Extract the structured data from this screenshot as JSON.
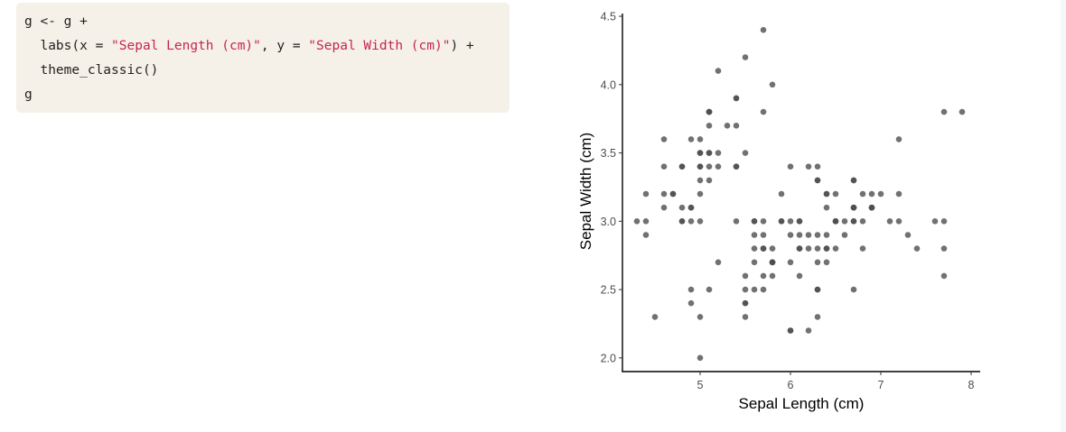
{
  "code": {
    "lines": [
      [
        {
          "t": "g <- g +",
          "k": "plain"
        }
      ],
      [
        {
          "t": "  labs(x = ",
          "k": "plain"
        },
        {
          "t": "\"Sepal Length (cm)\"",
          "k": "str"
        },
        {
          "t": ", y = ",
          "k": "plain"
        },
        {
          "t": "\"Sepal Width (cm)\"",
          "k": "str"
        },
        {
          "t": ") +",
          "k": "plain"
        }
      ],
      [
        {
          "t": "  theme_classic()",
          "k": "plain"
        }
      ],
      [
        {
          "t": "g",
          "k": "plain"
        }
      ]
    ]
  },
  "colors": {
    "point": "#4d4d4d",
    "string": "#c7254e",
    "code_bg": "#f5f1e9"
  },
  "chart_data": {
    "type": "scatter",
    "xlabel": "Sepal Length (cm)",
    "ylabel": "Sepal Width (cm)",
    "xlim": [
      4.14,
      8.1
    ],
    "ylim": [
      1.9,
      4.52
    ],
    "xticks": [
      5,
      6,
      7,
      8
    ],
    "xtick_labels": [
      "5",
      "6",
      "7",
      "8"
    ],
    "yticks": [
      2.0,
      2.5,
      3.0,
      3.5,
      4.0,
      4.5
    ],
    "ytick_labels": [
      "2.0",
      "2.5",
      "3.0",
      "3.5",
      "4.0",
      "4.5"
    ],
    "grid": false,
    "points": [
      [
        5.1,
        3.5
      ],
      [
        4.9,
        3.0
      ],
      [
        4.7,
        3.2
      ],
      [
        4.6,
        3.1
      ],
      [
        5.0,
        3.6
      ],
      [
        5.4,
        3.9
      ],
      [
        4.6,
        3.4
      ],
      [
        5.0,
        3.4
      ],
      [
        4.4,
        2.9
      ],
      [
        4.9,
        3.1
      ],
      [
        5.4,
        3.7
      ],
      [
        4.8,
        3.4
      ],
      [
        4.8,
        3.0
      ],
      [
        4.3,
        3.0
      ],
      [
        5.8,
        4.0
      ],
      [
        5.7,
        4.4
      ],
      [
        5.4,
        3.9
      ],
      [
        5.1,
        3.5
      ],
      [
        5.7,
        3.8
      ],
      [
        5.1,
        3.8
      ],
      [
        5.4,
        3.4
      ],
      [
        5.1,
        3.7
      ],
      [
        4.6,
        3.6
      ],
      [
        5.1,
        3.3
      ],
      [
        4.8,
        3.4
      ],
      [
        5.0,
        3.0
      ],
      [
        5.0,
        3.4
      ],
      [
        5.2,
        3.5
      ],
      [
        5.2,
        3.4
      ],
      [
        4.7,
        3.2
      ],
      [
        4.8,
        3.1
      ],
      [
        5.4,
        3.4
      ],
      [
        5.2,
        4.1
      ],
      [
        5.5,
        4.2
      ],
      [
        4.9,
        3.1
      ],
      [
        5.0,
        3.2
      ],
      [
        5.5,
        3.5
      ],
      [
        4.9,
        3.6
      ],
      [
        4.4,
        3.0
      ],
      [
        5.1,
        3.4
      ],
      [
        5.0,
        3.5
      ],
      [
        4.5,
        2.3
      ],
      [
        4.4,
        3.2
      ],
      [
        5.0,
        3.5
      ],
      [
        5.1,
        3.8
      ],
      [
        4.8,
        3.0
      ],
      [
        5.1,
        3.8
      ],
      [
        4.6,
        3.2
      ],
      [
        5.3,
        3.7
      ],
      [
        5.0,
        3.3
      ],
      [
        7.0,
        3.2
      ],
      [
        6.4,
        3.2
      ],
      [
        6.9,
        3.1
      ],
      [
        5.5,
        2.3
      ],
      [
        6.5,
        2.8
      ],
      [
        5.7,
        2.8
      ],
      [
        6.3,
        3.3
      ],
      [
        4.9,
        2.4
      ],
      [
        6.6,
        2.9
      ],
      [
        5.2,
        2.7
      ],
      [
        5.0,
        2.0
      ],
      [
        5.9,
        3.0
      ],
      [
        6.0,
        2.2
      ],
      [
        6.1,
        2.9
      ],
      [
        5.6,
        2.9
      ],
      [
        6.7,
        3.1
      ],
      [
        5.6,
        3.0
      ],
      [
        5.8,
        2.7
      ],
      [
        6.2,
        2.2
      ],
      [
        5.6,
        2.5
      ],
      [
        5.9,
        3.2
      ],
      [
        6.1,
        2.8
      ],
      [
        6.3,
        2.5
      ],
      [
        6.1,
        2.8
      ],
      [
        6.4,
        2.9
      ],
      [
        6.6,
        3.0
      ],
      [
        6.8,
        2.8
      ],
      [
        6.7,
        3.0
      ],
      [
        6.0,
        2.9
      ],
      [
        5.7,
        2.6
      ],
      [
        5.5,
        2.4
      ],
      [
        5.5,
        2.4
      ],
      [
        5.8,
        2.7
      ],
      [
        6.0,
        2.7
      ],
      [
        5.4,
        3.0
      ],
      [
        6.0,
        3.4
      ],
      [
        6.7,
        3.1
      ],
      [
        6.3,
        2.3
      ],
      [
        5.6,
        3.0
      ],
      [
        5.5,
        2.5
      ],
      [
        5.5,
        2.6
      ],
      [
        6.1,
        3.0
      ],
      [
        5.8,
        2.6
      ],
      [
        5.0,
        2.3
      ],
      [
        5.6,
        2.7
      ],
      [
        5.7,
        3.0
      ],
      [
        5.7,
        2.9
      ],
      [
        6.2,
        2.9
      ],
      [
        5.1,
        2.5
      ],
      [
        5.7,
        2.8
      ],
      [
        6.3,
        3.3
      ],
      [
        5.8,
        2.7
      ],
      [
        7.1,
        3.0
      ],
      [
        6.3,
        2.9
      ],
      [
        6.5,
        3.0
      ],
      [
        7.6,
        3.0
      ],
      [
        4.9,
        2.5
      ],
      [
        7.3,
        2.9
      ],
      [
        6.7,
        2.5
      ],
      [
        7.2,
        3.6
      ],
      [
        6.5,
        3.2
      ],
      [
        6.4,
        2.7
      ],
      [
        6.8,
        3.0
      ],
      [
        5.7,
        2.5
      ],
      [
        5.8,
        2.8
      ],
      [
        6.4,
        3.2
      ],
      [
        6.5,
        3.0
      ],
      [
        7.7,
        3.8
      ],
      [
        7.7,
        2.6
      ],
      [
        6.0,
        2.2
      ],
      [
        6.9,
        3.2
      ],
      [
        5.6,
        2.8
      ],
      [
        7.7,
        2.8
      ],
      [
        6.3,
        2.7
      ],
      [
        6.7,
        3.3
      ],
      [
        7.2,
        3.2
      ],
      [
        6.2,
        2.8
      ],
      [
        6.1,
        3.0
      ],
      [
        6.4,
        2.8
      ],
      [
        7.2,
        3.0
      ],
      [
        7.4,
        2.8
      ],
      [
        7.9,
        3.8
      ],
      [
        6.4,
        2.8
      ],
      [
        6.3,
        2.8
      ],
      [
        6.1,
        2.6
      ],
      [
        7.7,
        3.0
      ],
      [
        6.3,
        3.4
      ],
      [
        6.4,
        3.1
      ],
      [
        6.0,
        3.0
      ],
      [
        6.9,
        3.1
      ],
      [
        6.7,
        3.1
      ],
      [
        6.9,
        3.1
      ],
      [
        5.8,
        2.7
      ],
      [
        6.8,
        3.2
      ],
      [
        6.7,
        3.3
      ],
      [
        6.7,
        3.0
      ],
      [
        6.3,
        2.5
      ],
      [
        6.5,
        3.0
      ],
      [
        6.2,
        3.4
      ],
      [
        5.9,
        3.0
      ]
    ]
  }
}
